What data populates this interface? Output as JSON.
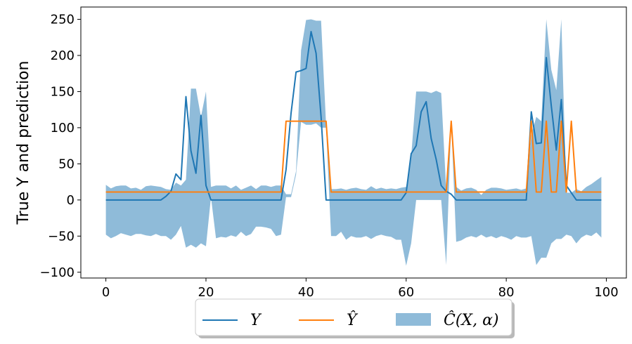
{
  "chart_data": {
    "type": "line",
    "ylabel": "True Y and prediction",
    "xlim": [
      -5,
      104
    ],
    "ylim": [
      -108,
      267
    ],
    "xticks": [
      0,
      20,
      40,
      60,
      80,
      100
    ],
    "xtick_labels": [
      "0",
      "20",
      "40",
      "60",
      "80",
      "100"
    ],
    "yticks": [
      -100,
      -50,
      0,
      50,
      100,
      150,
      200,
      250
    ],
    "ytick_labels": [
      "−100",
      "−50",
      "0",
      "50",
      "100",
      "150",
      "200",
      "250"
    ],
    "grid": false,
    "legend_position": "bottom-center (below plot)",
    "series": [
      {
        "name": "Y",
        "kind": "line",
        "color": "#1f77b4",
        "x": [
          0,
          1,
          2,
          3,
          4,
          5,
          6,
          7,
          8,
          9,
          10,
          11,
          12,
          13,
          14,
          15,
          16,
          17,
          18,
          19,
          20,
          21,
          22,
          23,
          24,
          25,
          26,
          27,
          28,
          29,
          30,
          31,
          32,
          33,
          34,
          35,
          36,
          37,
          38,
          39,
          40,
          41,
          42,
          43,
          44,
          45,
          46,
          47,
          48,
          49,
          50,
          51,
          52,
          53,
          54,
          55,
          56,
          57,
          58,
          59,
          60,
          61,
          62,
          63,
          64,
          65,
          66,
          67,
          68,
          69,
          70,
          71,
          72,
          73,
          74,
          75,
          76,
          77,
          78,
          79,
          80,
          81,
          82,
          83,
          84,
          85,
          86,
          87,
          88,
          89,
          90,
          91,
          92,
          93,
          94,
          95,
          96,
          97,
          98,
          99
        ],
        "values": [
          0,
          0,
          0,
          0,
          0,
          0,
          0,
          0,
          0,
          0,
          0,
          0,
          5,
          12,
          36,
          28,
          143,
          68,
          37,
          117,
          20,
          0,
          0,
          0,
          0,
          0,
          0,
          0,
          0,
          0,
          0,
          0,
          0,
          0,
          0,
          0,
          42,
          120,
          177,
          179,
          182,
          233,
          203,
          115,
          0,
          0,
          0,
          0,
          0,
          0,
          0,
          0,
          0,
          0,
          0,
          0,
          0,
          0,
          0,
          0,
          10,
          64,
          75,
          122,
          136,
          85,
          56,
          20,
          12,
          8,
          0,
          0,
          0,
          0,
          0,
          0,
          0,
          0,
          0,
          0,
          0,
          0,
          0,
          0,
          0,
          122,
          78,
          79,
          197,
          130,
          69,
          139,
          20,
          10,
          0,
          0,
          0,
          0,
          0,
          0
        ]
      },
      {
        "name": "Ŷ",
        "kind": "line",
        "color": "#ff7f0e",
        "x": [
          0,
          1,
          2,
          3,
          4,
          5,
          6,
          7,
          8,
          9,
          10,
          11,
          12,
          13,
          14,
          15,
          16,
          17,
          18,
          19,
          20,
          21,
          22,
          23,
          24,
          25,
          26,
          27,
          28,
          29,
          30,
          31,
          32,
          33,
          34,
          35,
          36,
          37,
          38,
          39,
          40,
          41,
          42,
          43,
          44,
          45,
          46,
          47,
          48,
          49,
          50,
          51,
          52,
          53,
          54,
          55,
          56,
          57,
          58,
          59,
          60,
          61,
          62,
          63,
          64,
          65,
          66,
          67,
          68,
          69,
          70,
          71,
          72,
          73,
          74,
          75,
          76,
          77,
          78,
          79,
          80,
          81,
          82,
          83,
          84,
          85,
          86,
          87,
          88,
          89,
          90,
          91,
          92,
          93,
          94,
          95,
          96,
          97,
          98,
          99
        ],
        "values": [
          11,
          11,
          11,
          11,
          11,
          11,
          11,
          11,
          11,
          11,
          11,
          11,
          11,
          11,
          11,
          11,
          11,
          11,
          11,
          11,
          11,
          11,
          11,
          11,
          11,
          11,
          11,
          11,
          11,
          11,
          11,
          11,
          11,
          11,
          11,
          11,
          109,
          109,
          109,
          109,
          109,
          109,
          109,
          109,
          109,
          11,
          11,
          11,
          11,
          11,
          11,
          11,
          11,
          11,
          11,
          11,
          11,
          11,
          11,
          11,
          11,
          11,
          11,
          11,
          11,
          11,
          11,
          11,
          11,
          109,
          11,
          11,
          11,
          11,
          11,
          11,
          11,
          11,
          11,
          11,
          11,
          11,
          11,
          11,
          11,
          109,
          11,
          11,
          109,
          11,
          11,
          109,
          11,
          109,
          11,
          11,
          11,
          11,
          11,
          11
        ]
      },
      {
        "name": "Ĉ(X, α)",
        "kind": "band",
        "color": "#1f77b4",
        "opacity": 0.5,
        "x": [
          0,
          1,
          2,
          3,
          4,
          5,
          6,
          7,
          8,
          9,
          10,
          11,
          12,
          13,
          14,
          15,
          16,
          17,
          18,
          19,
          20,
          21,
          22,
          23,
          24,
          25,
          26,
          27,
          28,
          29,
          30,
          31,
          32,
          33,
          34,
          35,
          36,
          37,
          38,
          39,
          40,
          41,
          42,
          43,
          44,
          45,
          46,
          47,
          48,
          49,
          50,
          51,
          52,
          53,
          54,
          55,
          56,
          57,
          58,
          59,
          60,
          61,
          62,
          63,
          64,
          65,
          66,
          67,
          68,
          69,
          70,
          71,
          72,
          73,
          74,
          75,
          76,
          77,
          78,
          79,
          80,
          81,
          82,
          83,
          84,
          85,
          86,
          87,
          88,
          89,
          90,
          91,
          92,
          93,
          94,
          95,
          96,
          97,
          98,
          99
        ],
        "upper": [
          21,
          16,
          19,
          20,
          20,
          16,
          17,
          14,
          19,
          20,
          19,
          18,
          15,
          14,
          24,
          20,
          28,
          154,
          154,
          115,
          150,
          18,
          20,
          20,
          20,
          16,
          20,
          14,
          17,
          20,
          15,
          20,
          20,
          18,
          20,
          20,
          8,
          8,
          40,
          207,
          249,
          250,
          248,
          248,
          104,
          15,
          15,
          16,
          14,
          16,
          17,
          15,
          14,
          19,
          15,
          17,
          15,
          16,
          15,
          17,
          18,
          60,
          150,
          150,
          150,
          148,
          151,
          148,
          14,
          110,
          18,
          13,
          16,
          17,
          14,
          7,
          14,
          17,
          17,
          16,
          14,
          15,
          16,
          14,
          16,
          90,
          115,
          109,
          250,
          180,
          152,
          250,
          10,
          10,
          15,
          12,
          18,
          22,
          27,
          32
        ],
        "lower": [
          -48,
          -53,
          -50,
          -46,
          -48,
          -50,
          -47,
          -47,
          -49,
          -50,
          -47,
          -50,
          -50,
          -55,
          -48,
          -36,
          -66,
          -62,
          -66,
          -60,
          -64,
          4,
          -53,
          -51,
          -52,
          -49,
          -51,
          -44,
          -50,
          -47,
          -37,
          -37,
          -38,
          -40,
          -50,
          -48,
          4,
          4,
          35,
          108,
          104,
          104,
          106,
          100,
          100,
          -50,
          -50,
          -44,
          -55,
          -50,
          -52,
          -52,
          -50,
          -54,
          -50,
          -48,
          -50,
          -51,
          -55,
          -55,
          -91,
          -60,
          0,
          0,
          0,
          0,
          0,
          0,
          -90,
          108,
          -58,
          -56,
          -52,
          -50,
          -52,
          -48,
          -52,
          -50,
          -53,
          -50,
          -52,
          -55,
          -50,
          -52,
          -52,
          -50,
          -90,
          -80,
          -80,
          -60,
          -54,
          -54,
          -48,
          -50,
          -60,
          -52,
          -48,
          -50,
          -45,
          -52
        ]
      }
    ],
    "legend": [
      {
        "label": "Y",
        "kind": "line",
        "color": "#1f77b4"
      },
      {
        "label": "Ŷ",
        "kind": "line",
        "color": "#ff7f0e"
      },
      {
        "label": "Ĉ(X, α)",
        "kind": "band",
        "color": "#1f77b4"
      }
    ]
  }
}
